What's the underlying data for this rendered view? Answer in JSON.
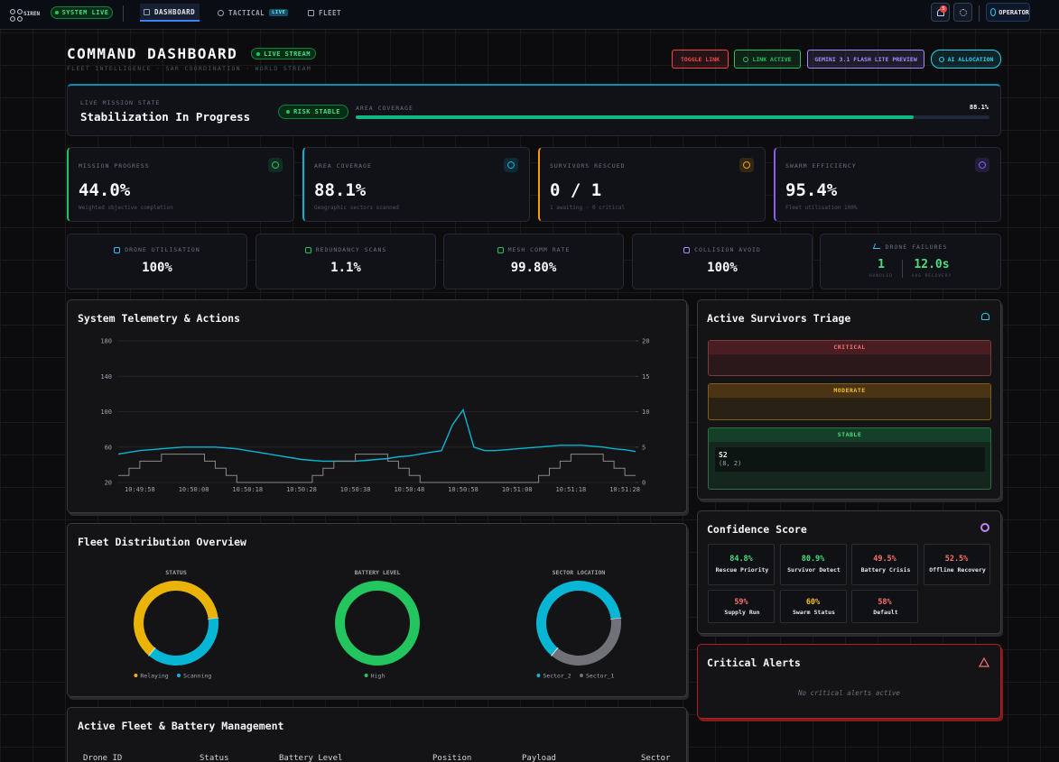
{
  "nav": {
    "brand": "SIREN",
    "status": "SYSTEM LIVE",
    "tabs": [
      "DASHBOARD",
      "TACTICAL",
      "FLEET"
    ],
    "tactical_badge": "LIVE",
    "notifications": "5",
    "user": "OPERATOR"
  },
  "header": {
    "title": "COMMAND DASHBOARD",
    "badge": "LIVE STREAM",
    "subtitle": "FLEET INTELLIGENCE · SAR COORDINATION · WORLD STREAM",
    "buttons": [
      {
        "label": "TOGGLE LINK",
        "color": "#f0474a"
      },
      {
        "label": "LINK ACTIVE",
        "color": "#22c55e"
      },
      {
        "label": "GEMINI 3.1 FLASH LITE PREVIEW",
        "color": "#a78bfa"
      },
      {
        "label": "AI ALLOCATION",
        "color": "#22d3ee"
      }
    ]
  },
  "mission": {
    "label": "LIVE MISSION STATE",
    "state": "Stabilization In Progress",
    "risk": "RISK STABLE",
    "coverage_title": "AREA COVERAGE",
    "coverage": 88.1,
    "coverage_label": "88.1%"
  },
  "kpis": [
    {
      "label": "MISSION PROGRESS",
      "value": "44.0%",
      "note": "Weighted objective completion",
      "color": "#22c55e"
    },
    {
      "label": "AREA COVERAGE",
      "value": "88.1%",
      "note": "Geographic sectors scanned",
      "color": "#06b6d4"
    },
    {
      "label": "SURVIVORS RESCUED",
      "value": "0 / 1",
      "note": "1 awaiting · 0 critical",
      "color": "#f59e0b"
    },
    {
      "label": "SWARM EFFICIENCY",
      "value": "95.4%",
      "note": "Fleet utilisation 100%",
      "color": "#8b5cf6"
    }
  ],
  "metrics": [
    {
      "label": "DRONE UTILISATION",
      "value": "100%",
      "color": "#38bdf8"
    },
    {
      "label": "REDUNDANCY SCANS",
      "value": "1.1%",
      "color": "#22c55e"
    },
    {
      "label": "MESH COMM RATE",
      "value": "99.80%",
      "color": "#22c55e"
    },
    {
      "label": "COLLISION AVOID",
      "value": "100%",
      "color": "#a78bfa"
    }
  ],
  "failures": {
    "label": "DRONE FAILURES",
    "handled": "1",
    "handled_label": "HANDLED",
    "recovery": "12.0s",
    "recovery_label": "AVG RECOVERY"
  },
  "telemetry": {
    "type": "line",
    "title": "System Telemetry & Actions",
    "categories": [
      null,
      null,
      "10:49:58",
      null,
      null,
      null,
      null,
      "10:50:08",
      null,
      null,
      null,
      null,
      "10:50:18",
      null,
      null,
      null,
      null,
      "10:50:28",
      null,
      null,
      null,
      null,
      "10:50:38",
      null,
      null,
      null,
      null,
      "10:50:48",
      null,
      null,
      null,
      null,
      "10:50:58",
      null,
      null,
      null,
      null,
      "10:51:08",
      null,
      null,
      null,
      null,
      "10:51:18",
      null,
      null,
      null,
      null,
      "10:51:28",
      null
    ],
    "ylim": [
      20,
      180
    ],
    "yticks": [
      20,
      60,
      100,
      140,
      180
    ],
    "y2lim": [
      0,
      20
    ],
    "y2ticks": [
      0,
      5,
      10,
      15,
      20
    ],
    "series": [
      {
        "color": "#06b6d4",
        "step": false,
        "values": [
          52,
          54,
          56,
          57,
          58,
          59,
          60,
          60,
          60,
          60,
          59,
          58,
          56,
          54,
          52,
          50,
          48,
          46,
          45,
          44,
          44,
          44,
          44,
          45,
          46,
          47,
          49,
          50,
          52,
          54,
          56,
          85,
          102,
          60,
          56,
          56,
          57,
          58,
          59,
          60,
          61,
          62,
          62,
          62,
          61,
          60,
          58,
          57,
          55
        ]
      },
      {
        "color": "#8a8a8a",
        "step": true,
        "axis": "y2",
        "values": [
          1,
          2,
          3,
          3,
          4,
          4,
          4,
          4,
          3,
          2,
          1,
          0,
          0,
          0,
          0,
          0,
          0,
          0,
          1,
          2,
          3,
          3,
          4,
          4,
          4,
          3,
          2,
          1,
          0,
          0,
          0,
          0,
          0,
          0,
          0,
          0,
          0,
          0,
          0,
          1,
          2,
          3,
          4,
          4,
          4,
          3,
          2,
          1,
          1
        ]
      }
    ]
  },
  "distribution": {
    "title": "Fleet Distribution Overview",
    "charts": [
      {
        "type": "pie",
        "title": "STATUS",
        "categories": [
          "Relaying",
          "Scanning"
        ],
        "values": [
          62,
          38
        ],
        "colors": [
          "#eab308",
          "#06b6d4"
        ]
      },
      {
        "type": "pie",
        "title": "BATTERY LEVEL",
        "categories": [
          "High"
        ],
        "values": [
          100
        ],
        "colors": [
          "#22c55e"
        ]
      },
      {
        "type": "pie",
        "title": "SECTOR LOCATION",
        "categories": [
          "Sector_2",
          "Sector_1"
        ],
        "values": [
          62,
          38
        ],
        "colors": [
          "#06b6d4",
          "#71717a"
        ]
      }
    ]
  },
  "triage": {
    "title": "Active Survivors Triage",
    "groups": [
      {
        "label": "CRITICAL",
        "color": "#f87171",
        "bg": "#4a1d22",
        "items": []
      },
      {
        "label": "MODERATE",
        "color": "#fbbf24",
        "bg": "#4a3414",
        "items": []
      },
      {
        "label": "STABLE",
        "color": "#4ade80",
        "bg": "#14402a",
        "items": [
          {
            "id": "S2",
            "pos": "(8, 2)"
          }
        ]
      }
    ]
  },
  "confidence": {
    "title": "Confidence Score",
    "items": [
      {
        "value": "84.8%",
        "label": "Rescue Priority",
        "color": "#4ade80"
      },
      {
        "value": "80.9%",
        "label": "Survivor Detect",
        "color": "#4ade80"
      },
      {
        "value": "49.5%",
        "label": "Battery Crisis",
        "color": "#f87171"
      },
      {
        "value": "52.5%",
        "label": "Offline Recovery",
        "color": "#f87171"
      },
      {
        "value": "59%",
        "label": "Supply Run",
        "color": "#f87171"
      },
      {
        "value": "60%",
        "label": "Swarm Status",
        "color": "#fbbf24"
      },
      {
        "value": "58%",
        "label": "Default",
        "color": "#f87171"
      }
    ]
  },
  "alerts": {
    "title": "Critical Alerts",
    "message": "No critical alerts active"
  },
  "fleet_table": {
    "title": "Active Fleet & Battery Management",
    "columns": [
      "Drone ID",
      "Status",
      "Battery Level",
      "Position",
      "Payload",
      "Sector"
    ]
  }
}
